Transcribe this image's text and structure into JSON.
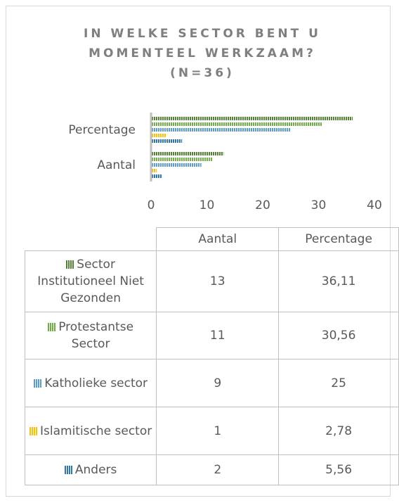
{
  "chart_data": {
    "type": "hbar",
    "title": "IN WELKE SECTOR BENT U MOMENTEEL WERKZAAM? (N=36)",
    "categories": [
      "Aantal",
      "Percentage"
    ],
    "series": [
      {
        "name": "Sector Institutioneel Niet Gezonden",
        "color": "#548235",
        "values": [
          13,
          36.11
        ],
        "value_labels": [
          "13",
          "36,11"
        ]
      },
      {
        "name": "Protestantse Sector",
        "color": "#70ad47",
        "values": [
          11,
          30.56
        ],
        "value_labels": [
          "11",
          "30,56"
        ]
      },
      {
        "name": "Katholieke sector",
        "color": "#5b9bd5",
        "values": [
          9,
          25
        ],
        "value_labels": [
          "9",
          "25"
        ]
      },
      {
        "name": "Islamitische sector",
        "color": "#ffc000",
        "values": [
          1,
          2.78
        ],
        "value_labels": [
          "1",
          "2,78"
        ]
      },
      {
        "name": "Anders",
        "color": "#2e75b6",
        "values": [
          2,
          5.56
        ],
        "value_labels": [
          "2",
          "5,56"
        ]
      }
    ],
    "xlim": [
      0,
      40
    ],
    "xticks": [
      0,
      10,
      20,
      30,
      40
    ],
    "grid": false
  }
}
